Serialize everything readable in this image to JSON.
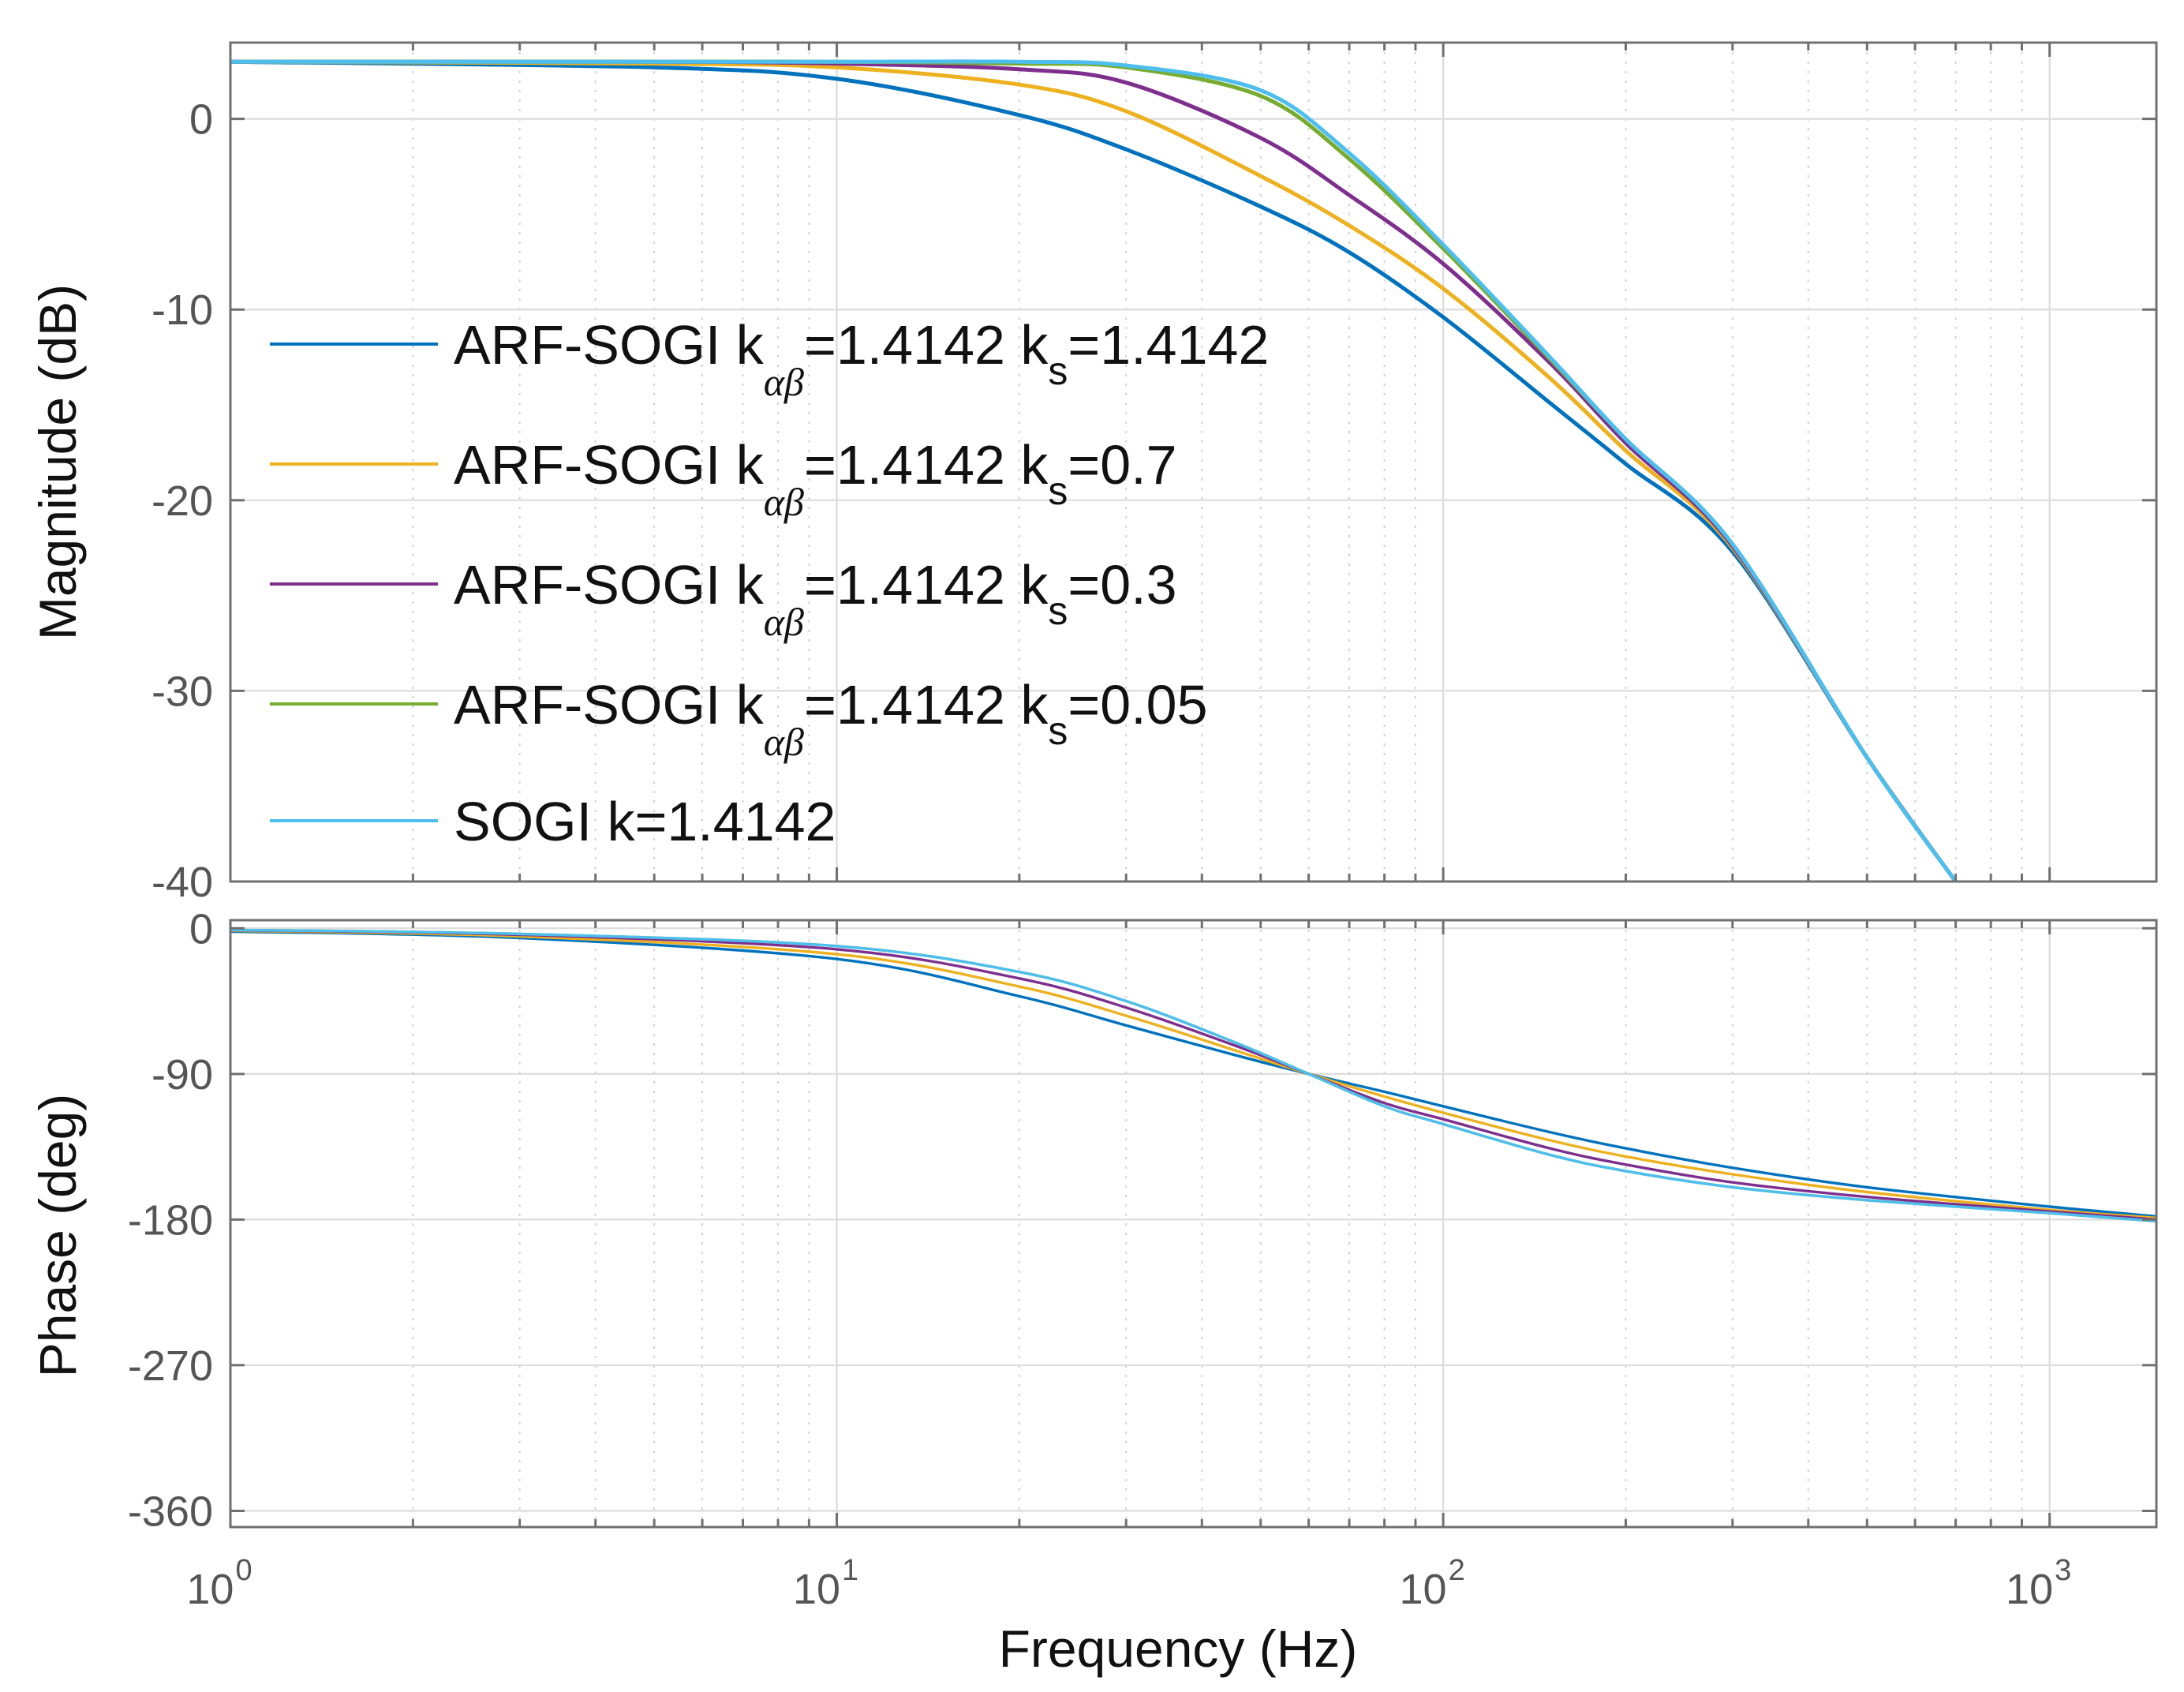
{
  "chart_data": [
    {
      "type": "line",
      "title": "",
      "xlabel": "Frequency  (Hz)",
      "ylabel": "Magnitude (dB)",
      "xscale": "log",
      "xlim": [
        1,
        1500
      ],
      "ylim": [
        -40,
        4
      ],
      "yticks": [
        "0",
        "-10",
        "-20",
        "-30",
        "-40"
      ],
      "ytick_values": [
        0,
        -10,
        -20,
        -30,
        -40
      ],
      "grid": true,
      "legend_position": "left",
      "series": [
        {
          "name": "ARF-SOGI  k_αβ=1.4142 k_s=1.4142",
          "color": "#0072BD",
          "x": [
            1,
            5,
            10,
            20,
            30,
            50,
            70,
            100,
            150,
            200,
            300,
            500,
            700
          ],
          "y": [
            3.0,
            2.7,
            2.1,
            0.2,
            -1.6,
            -4.6,
            -7.0,
            -10.4,
            -14.9,
            -18.1,
            -22.7,
            -33.5,
            -40.0
          ]
        },
        {
          "name": "ARF-SOGI  k_αβ=1.4142 k_s=0.7",
          "color": "#EDB120",
          "x": [
            1,
            5,
            10,
            20,
            30,
            50,
            70,
            100,
            150,
            200,
            300,
            500,
            700
          ],
          "y": [
            3.0,
            2.9,
            2.7,
            1.8,
            0.4,
            -3.0,
            -5.6,
            -8.9,
            -13.6,
            -17.4,
            -22.5,
            -33.5,
            -40.0
          ]
        },
        {
          "name": "ARF-SOGI  k_αβ=1.4142 k_s=0.3",
          "color": "#7E2F8E",
          "x": [
            1,
            5,
            10,
            20,
            30,
            50,
            70,
            100,
            150,
            200,
            300,
            500,
            700
          ],
          "y": [
            3.0,
            3.0,
            2.9,
            2.6,
            1.9,
            -1.0,
            -4.0,
            -7.6,
            -12.8,
            -17.0,
            -22.4,
            -33.5,
            -40.0
          ]
        },
        {
          "name": "ARF-SOGI k_αβ=1.4142 k_s=0.05",
          "color": "#77AC30",
          "x": [
            1,
            5,
            10,
            20,
            30,
            50,
            70,
            100,
            150,
            200,
            300,
            500,
            700
          ],
          "y": [
            3.0,
            3.0,
            3.0,
            2.9,
            2.7,
            1.2,
            -2.1,
            -6.8,
            -12.6,
            -16.8,
            -22.3,
            -33.5,
            -40.0
          ]
        },
        {
          "name": "SOGI k=1.4142",
          "color": "#4DBEEE",
          "x": [
            1,
            5,
            10,
            20,
            30,
            50,
            70,
            100,
            150,
            200,
            300,
            500,
            700
          ],
          "y": [
            3.0,
            3.0,
            3.0,
            3.0,
            2.8,
            1.5,
            -1.8,
            -6.6,
            -12.5,
            -16.8,
            -22.3,
            -33.5,
            -40.0
          ]
        }
      ]
    },
    {
      "type": "line",
      "title": "",
      "xlabel": "Frequency  (Hz)",
      "ylabel": "Phase (deg)",
      "xscale": "log",
      "xlim": [
        1,
        1500
      ],
      "ylim": [
        -370,
        5
      ],
      "yticks": [
        "0",
        "-90",
        "-180",
        "-270",
        "-360"
      ],
      "ytick_values": [
        0,
        -90,
        -180,
        -270,
        -360
      ],
      "xticks": [
        1,
        10,
        100,
        1000
      ],
      "grid": true,
      "series": [
        {
          "name": "ARF-SOGI  k_αβ=1.4142 k_s=1.4142",
          "color": "#0072BD",
          "x": [
            1,
            3,
            10,
            20,
            30,
            45,
            60,
            80,
            100,
            150,
            200,
            300,
            500,
            1000,
            1500
          ],
          "y": [
            -2,
            -6,
            -19,
            -42,
            -60,
            -78,
            -90,
            -101,
            -110,
            -126,
            -136,
            -148,
            -160,
            -172,
            -178
          ]
        },
        {
          "name": "ARF-SOGI  k_αβ=1.4142 k_s=0.7",
          "color": "#EDB120",
          "x": [
            1,
            3,
            10,
            20,
            30,
            45,
            60,
            80,
            100,
            150,
            200,
            300,
            500,
            1000,
            1500
          ],
          "y": [
            -1.5,
            -5,
            -16,
            -36,
            -54,
            -75,
            -90,
            -104,
            -114,
            -131,
            -141,
            -152,
            -163,
            -174,
            -179
          ]
        },
        {
          "name": "ARF-SOGI  k_αβ=1.4142 k_s=0.3",
          "color": "#7E2F8E",
          "x": [
            1,
            3,
            10,
            20,
            30,
            45,
            60,
            80,
            100,
            150,
            200,
            300,
            500,
            1000,
            1500
          ],
          "y": [
            -1.2,
            -4,
            -13,
            -31,
            -49,
            -72,
            -90,
            -108,
            -118,
            -136,
            -146,
            -157,
            -166,
            -175,
            -180
          ]
        },
        {
          "name": "ARF-SOGI k_αβ=1.4142 k_s=0.05",
          "color": "#77AC30",
          "x": [
            1,
            3,
            10,
            20,
            30,
            45,
            60,
            80,
            100,
            150,
            200,
            300,
            500,
            1000,
            1500
          ],
          "y": [
            -1,
            -3.5,
            -11,
            -27,
            -45,
            -70,
            -90,
            -110,
            -121,
            -140,
            -150,
            -160,
            -168,
            -176,
            -181
          ]
        },
        {
          "name": "SOGI k=1.4142",
          "color": "#4DBEEE",
          "x": [
            1,
            3,
            10,
            20,
            30,
            45,
            60,
            80,
            100,
            150,
            200,
            300,
            500,
            1000,
            1500
          ],
          "y": [
            -1,
            -3.5,
            -11,
            -27,
            -45,
            -70,
            -90,
            -110,
            -121,
            -140,
            -150,
            -160,
            -168,
            -176,
            -181
          ]
        }
      ]
    }
  ],
  "legend": {
    "entries": [
      {
        "pre": "ARF-SOGI  k",
        "sub1": "αβ",
        "mid": "=1.4142 k",
        "sub2": "s",
        "post": "=1.4142"
      },
      {
        "pre": "ARF-SOGI  k",
        "sub1": "αβ",
        "mid": "=1.4142 k",
        "sub2": "s",
        "post": "=0.7"
      },
      {
        "pre": "ARF-SOGI  k",
        "sub1": "αβ",
        "mid": "=1.4142 k",
        "sub2": "s",
        "post": "=0.3"
      },
      {
        "pre": "ARF-SOGI k",
        "sub1": "αβ",
        "mid": "=1.4142 k",
        "sub2": "s",
        "post": "=0.05"
      },
      {
        "pre": "SOGI k=1.4142",
        "sub1": "",
        "mid": "",
        "sub2": "",
        "post": ""
      }
    ]
  },
  "xtick_labels": [
    {
      "base": "10",
      "exp": "0"
    },
    {
      "base": "10",
      "exp": "1"
    },
    {
      "base": "10",
      "exp": "2"
    },
    {
      "base": "10",
      "exp": "3"
    }
  ]
}
